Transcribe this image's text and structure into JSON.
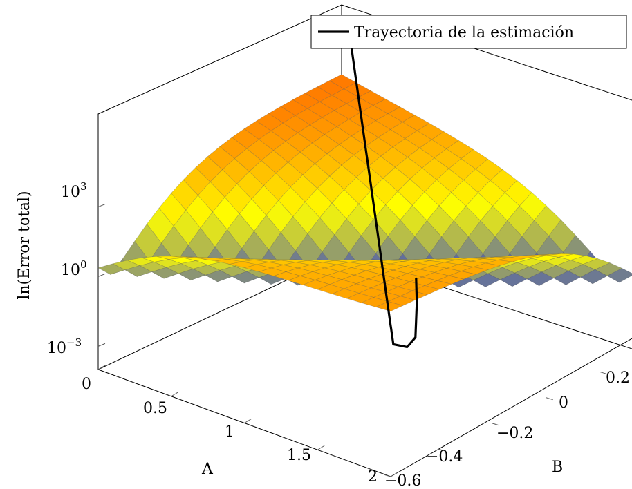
{
  "chart_data": {
    "type": "surface3d",
    "xlabel": "A",
    "ylabel": "B",
    "zlabel": "ln(Error total)",
    "x_ticks": [
      "0",
      "0.5",
      "1",
      "1.5",
      "2"
    ],
    "y_ticks": [
      "−0.6",
      "−0.4",
      "−0.2",
      "0",
      "0.2"
    ],
    "z_ticks": [
      {
        "base": "10",
        "exp": "−3"
      },
      {
        "base": "10",
        "exp": "0"
      },
      {
        "base": "10",
        "exp": "3"
      }
    ],
    "xlim": [
      0,
      2
    ],
    "ylim": [
      -0.6,
      0.3
    ],
    "zlim": [
      -4,
      7
    ],
    "zscale": "log",
    "colormap": [
      "#3344cc",
      "#ffff00",
      "#ff0000"
    ],
    "legend": {
      "position": "top-right",
      "entries": [
        {
          "label": "Trayectoria de la estimación",
          "color": "#000000"
        }
      ]
    }
  }
}
